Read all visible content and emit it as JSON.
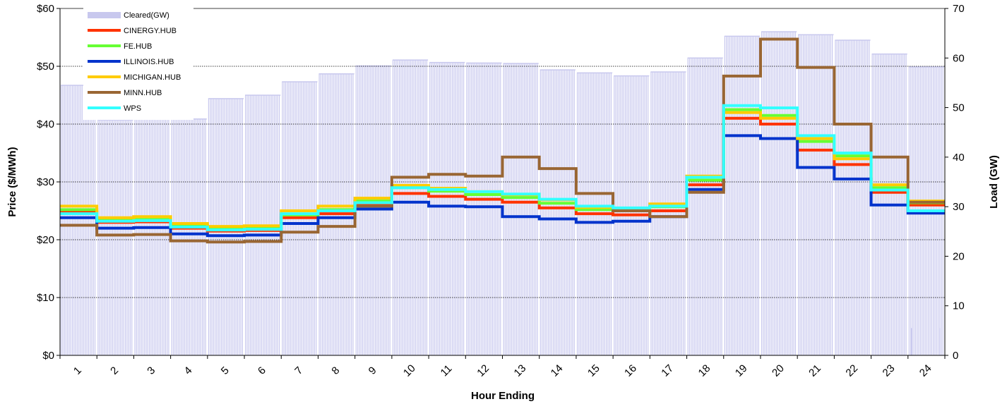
{
  "chart_data": {
    "type": "line",
    "title": "",
    "xlabel": "Hour Ending",
    "ylabel": "Price ($/MWh)",
    "y2label": "Load (GW)",
    "categories": [
      "1",
      "2",
      "3",
      "4",
      "5",
      "6",
      "7",
      "8",
      "9",
      "10",
      "11",
      "12",
      "13",
      "14",
      "15",
      "16",
      "17",
      "18",
      "19",
      "20",
      "21",
      "22",
      "23",
      "24"
    ],
    "ylim": [
      0,
      60
    ],
    "y2lim": [
      0,
      70
    ],
    "yticks": [
      "$0",
      "$10",
      "$20",
      "$30",
      "$40",
      "$50",
      "$60"
    ],
    "y2ticks": [
      "0",
      "10",
      "20",
      "30",
      "40",
      "50",
      "60",
      "70"
    ],
    "grid": true,
    "legend_position": "top-left",
    "bar_series": {
      "name": "Cleared(GW)",
      "color": "#c8c8ee",
      "values": [
        54.5,
        47.5,
        47.7,
        47.7,
        51.8,
        52.5,
        55.2,
        56.8,
        58.4,
        59.6,
        59.1,
        59.0,
        58.9,
        57.6,
        57.0,
        56.4,
        57.2,
        60.0,
        64.4,
        65.3,
        64.7,
        63.6,
        60.8,
        58.2
      ],
      "trailing_values": [
        5.5,
        5.5
      ]
    },
    "series": [
      {
        "name": "CINERGY.HUB",
        "color": "#ff3300",
        "values": [
          24.8,
          23.0,
          23.1,
          22.0,
          21.5,
          21.6,
          23.8,
          24.5,
          26.0,
          28.0,
          27.5,
          27.0,
          26.5,
          25.5,
          24.5,
          24.3,
          25.0,
          29.5,
          41.0,
          40.0,
          35.5,
          33.0,
          28.2,
          26.0
        ]
      },
      {
        "name": "FE.HUB",
        "color": "#66ff33",
        "values": [
          25.2,
          23.4,
          23.5,
          22.4,
          21.9,
          22.0,
          24.3,
          25.2,
          26.7,
          29.0,
          28.4,
          27.8,
          27.3,
          26.3,
          25.2,
          25.0,
          25.7,
          30.3,
          42.5,
          41.5,
          37.0,
          34.5,
          29.0,
          26.4
        ]
      },
      {
        "name": "ILLINOIS.HUB",
        "color": "#0033cc",
        "values": [
          23.8,
          22.0,
          22.1,
          21.0,
          20.7,
          20.8,
          22.8,
          23.8,
          25.3,
          26.5,
          25.8,
          25.7,
          24.0,
          23.6,
          23.0,
          23.2,
          24.0,
          28.7,
          38.0,
          37.5,
          32.5,
          30.5,
          26.0,
          24.6
        ]
      },
      {
        "name": "MICHIGAN.HUB",
        "color": "#ffcc00",
        "values": [
          25.8,
          23.8,
          24.0,
          22.8,
          22.3,
          22.4,
          25.0,
          25.8,
          27.2,
          29.4,
          28.9,
          28.3,
          27.8,
          26.9,
          25.6,
          25.4,
          26.2,
          31.0,
          42.0,
          41.0,
          37.5,
          34.0,
          29.5,
          26.7
        ]
      },
      {
        "name": "MINN.HUB",
        "color": "#996633",
        "values": [
          22.5,
          20.8,
          20.9,
          19.8,
          19.6,
          19.7,
          21.3,
          22.3,
          25.8,
          30.8,
          31.3,
          31.0,
          34.3,
          32.3,
          28.0,
          25.0,
          24.0,
          28.2,
          48.3,
          54.7,
          49.8,
          40.0,
          34.3,
          26.5
        ]
      },
      {
        "name": "WPS",
        "color": "#33ffff",
        "values": [
          24.5,
          23.2,
          23.3,
          22.2,
          21.7,
          21.8,
          24.5,
          25.0,
          26.4,
          29.0,
          28.7,
          28.3,
          27.9,
          27.0,
          25.8,
          25.5,
          25.8,
          30.8,
          43.2,
          42.8,
          38.0,
          35.0,
          28.6,
          25.0
        ]
      }
    ]
  }
}
